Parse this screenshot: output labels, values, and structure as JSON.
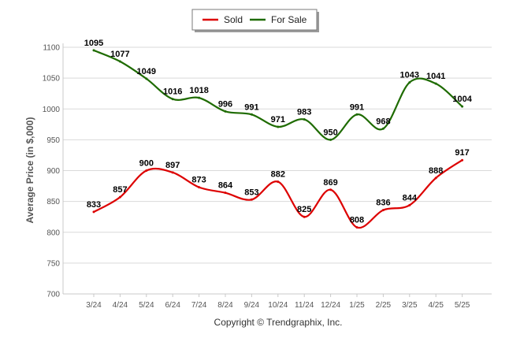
{
  "chart_data": {
    "type": "line",
    "title": "",
    "xlabel": "",
    "ylabel": "Average Price (in $,000)",
    "ylim": [
      700,
      1100
    ],
    "yticks": [
      700,
      750,
      800,
      850,
      900,
      950,
      1000,
      1050,
      1100
    ],
    "grid": "horizontal",
    "legend_position": "top-center",
    "categories": [
      "3/24",
      "4/24",
      "5/24",
      "6/24",
      "7/24",
      "8/24",
      "9/24",
      "10/24",
      "11/24",
      "12/24",
      "1/25",
      "2/25",
      "3/25",
      "4/25",
      "5/25"
    ],
    "series": [
      {
        "name": "Sold",
        "color": "#dd0000",
        "values": [
          833,
          857,
          900,
          897,
          873,
          864,
          853,
          882,
          825,
          869,
          808,
          836,
          844,
          888,
          917
        ]
      },
      {
        "name": "For Sale",
        "color": "#1e6b00",
        "values": [
          1095,
          1077,
          1049,
          1016,
          1018,
          996,
          991,
          971,
          983,
          950,
          991,
          968,
          1043,
          1041,
          1004
        ]
      }
    ]
  },
  "footer": {
    "copyright": "Copyright © Trendgraphix, Inc."
  }
}
